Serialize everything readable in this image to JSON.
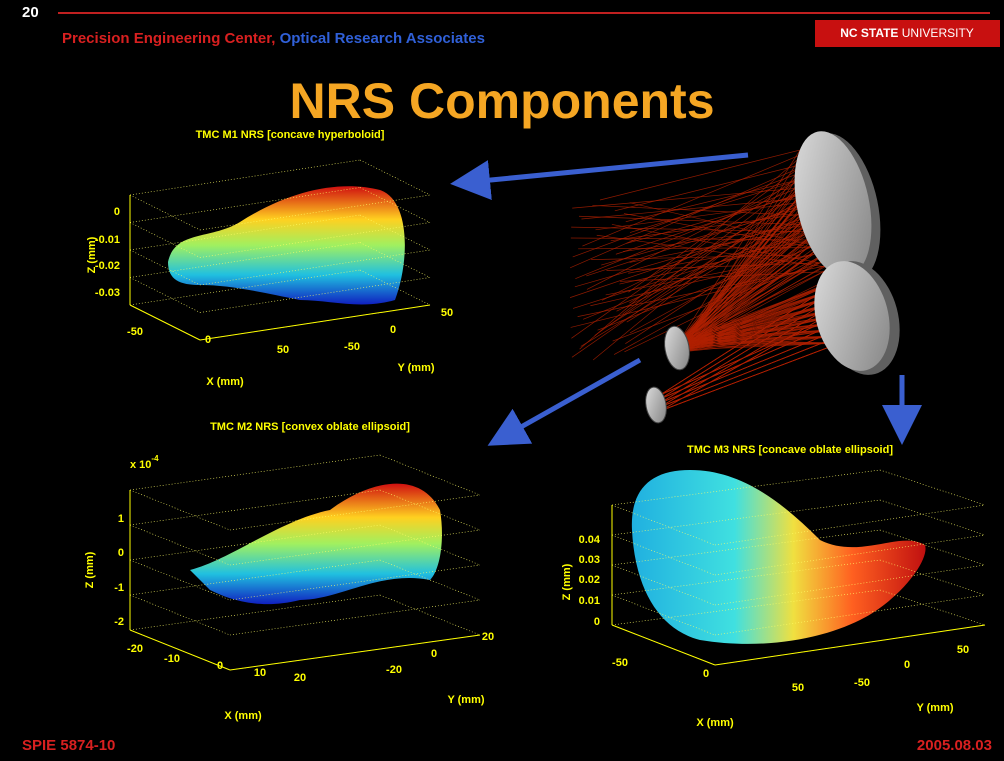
{
  "slide_number": "20",
  "header": {
    "org1": "Precision Engineering Center,",
    "org2": "Optical Research Associates",
    "logo_bold": "NC STATE",
    "logo_rest": "UNIVERSITY"
  },
  "title": "NRS Components",
  "plots": [
    {
      "title": "TMC M1 NRS [concave hyperboloid]",
      "z_label": "Z (mm)",
      "x_label": "X (mm)",
      "y_label": "Y (mm)",
      "z_ticks": [
        "0",
        "-0.01",
        "-0.02",
        "-0.03"
      ],
      "x_ticks": [
        "-50",
        "0",
        "50"
      ],
      "y_ticks": [
        "-50",
        "0",
        "50"
      ]
    },
    {
      "title": "TMC M2 NRS [convex oblate ellipsoid]",
      "multiplier": "x 10",
      "exponent": "-4",
      "z_label": "Z (mm)",
      "x_label": "X (mm)",
      "y_label": "Y (mm)",
      "z_ticks": [
        "1",
        "0",
        "-1",
        "-2"
      ],
      "x_ticks": [
        "-20",
        "-10",
        "0",
        "10",
        "20"
      ],
      "y_ticks": [
        "-20",
        "0",
        "20"
      ]
    },
    {
      "title": "TMC M3 NRS [concave oblate ellipsoid]",
      "z_label": "Z (mm)",
      "x_label": "X (mm)",
      "y_label": "Y (mm)",
      "z_ticks": [
        "0.04",
        "0.03",
        "0.02",
        "0.01",
        "0"
      ],
      "x_ticks": [
        "-50",
        "0",
        "50"
      ],
      "y_ticks": [
        "-50",
        "0",
        "50"
      ]
    }
  ],
  "footer": {
    "left": "SPIE 5874-10",
    "right": "2005.08.03"
  }
}
